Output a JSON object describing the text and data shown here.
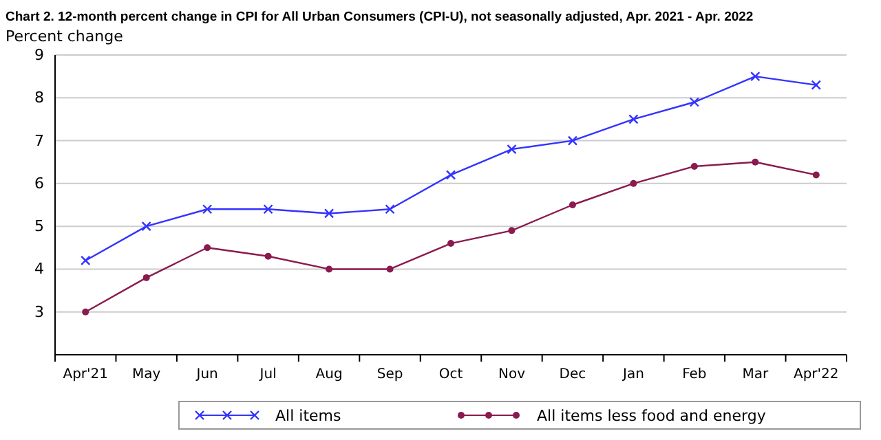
{
  "chart_data": {
    "type": "line",
    "title": "Chart 2. 12-month percent change in CPI for All Urban Consumers (CPI-U), not seasonally adjusted, Apr. 2021 - Apr. 2022",
    "ylabel": "Percent change",
    "categories": [
      "Apr'21",
      "May",
      "Jun",
      "Jul",
      "Aug",
      "Sep",
      "Oct",
      "Nov",
      "Dec",
      "Jan",
      "Feb",
      "Mar",
      "Apr'22"
    ],
    "series": [
      {
        "name": "All items",
        "color": "#3333ff",
        "marker": "cross",
        "values": [
          4.2,
          5.0,
          5.4,
          5.4,
          5.3,
          5.4,
          6.2,
          6.8,
          7.0,
          7.5,
          7.9,
          8.5,
          8.3
        ]
      },
      {
        "name": "All items less food and energy",
        "color": "#8b1a4f",
        "marker": "circle",
        "values": [
          3.0,
          3.8,
          4.5,
          4.3,
          4.0,
          4.0,
          4.6,
          4.9,
          5.5,
          6.0,
          6.4,
          6.5,
          6.2
        ]
      }
    ],
    "ylim": [
      2,
      9
    ],
    "yticks": [
      3,
      4,
      5,
      6,
      7,
      8,
      9
    ],
    "grid": "y",
    "legend": "bottom",
    "line_style": "solid"
  }
}
